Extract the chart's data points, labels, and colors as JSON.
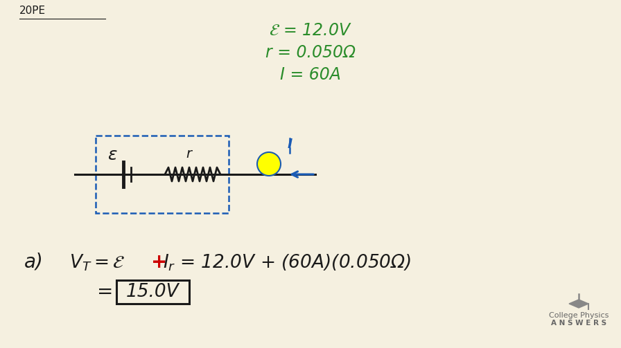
{
  "bg_color": "#f5f0e0",
  "green_color": "#2a8c2a",
  "blue_color": "#1a5bb5",
  "black_color": "#1a1a1a",
  "red_color": "#cc0000",
  "gray_color": "#888888",
  "title": "20PE",
  "given1": "$\\mathcal{E}$ = 12.0V",
  "given2": "r = 0.050Ω",
  "given3": "I = 60A",
  "eq_line1a": "$V_T = \\mathcal{E}$",
  "eq_line1b": "+",
  "eq_line1c": "$I_r$ = 12.0V + (60A)(0.050Ω)",
  "eq_line2": "=",
  "answer": "15.0V",
  "logo_line1": "College Physics",
  "logo_line2": "A N S W E R S"
}
